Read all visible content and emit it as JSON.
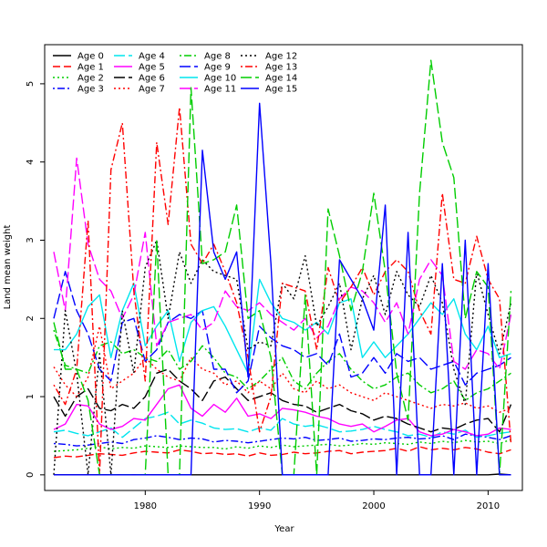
{
  "chart_data": {
    "type": "line",
    "title": "",
    "xlabel": "Year",
    "ylabel": "Land mean weight",
    "xlim": [
      1971.2,
      2013.0
    ],
    "ylim": [
      -0.2,
      5.5
    ],
    "xticks": [
      1980,
      1990,
      2000,
      2010
    ],
    "yticks": [
      0,
      1,
      2,
      3,
      4,
      5
    ],
    "legend_position": "top-left",
    "x": [
      1972,
      1973,
      1974,
      1975,
      1976,
      1977,
      1978,
      1979,
      1980,
      1981,
      1982,
      1983,
      1984,
      1985,
      1986,
      1987,
      1988,
      1989,
      1990,
      1991,
      1992,
      1993,
      1994,
      1995,
      1996,
      1997,
      1998,
      1999,
      2000,
      2001,
      2002,
      2003,
      2004,
      2005,
      2006,
      2007,
      2008,
      2009,
      2010,
      2011,
      2012
    ],
    "series": [
      {
        "name": "Age 0",
        "color": "#000000",
        "dash": "solid",
        "values": [
          0,
          0,
          0,
          0,
          0,
          0,
          0,
          0,
          0,
          0,
          0,
          0,
          0,
          0,
          0,
          0,
          0,
          0,
          0,
          0,
          0,
          0,
          0,
          0,
          0,
          0,
          0,
          0,
          0,
          0,
          0,
          0,
          0,
          0,
          0,
          0,
          0,
          0,
          0,
          0.01,
          0
        ]
      },
      {
        "name": "Age 1",
        "color": "#ff0000",
        "dash": "dashed",
        "values": [
          0.22,
          0.24,
          0.23,
          0.25,
          0.27,
          0.26,
          0.25,
          0.28,
          0.3,
          0.29,
          0.28,
          0.32,
          0.3,
          0.27,
          0.28,
          0.26,
          0.27,
          0.24,
          0.28,
          0.25,
          0.26,
          0.29,
          0.27,
          0.28,
          0.3,
          0.31,
          0.27,
          0.29,
          0.3,
          0.31,
          0.34,
          0.3,
          0.36,
          0.32,
          0.34,
          0.32,
          0.35,
          0.33,
          0.29,
          0.27,
          0.32
        ]
      },
      {
        "name": "Age 2",
        "color": "#00cd00",
        "dash": "dotted",
        "values": [
          0.3,
          0.31,
          0.32,
          0.34,
          0.36,
          0.33,
          0.35,
          0.34,
          0.37,
          0.36,
          0.35,
          0.37,
          0.36,
          0.35,
          0.35,
          0.33,
          0.36,
          0.34,
          0.37,
          0.35,
          0.38,
          0.36,
          0.37,
          0.38,
          0.39,
          0.37,
          0.38,
          0.4,
          0.39,
          0.41,
          0.4,
          0.39,
          0.42,
          0.4,
          0.43,
          0.41,
          0.44,
          0.42,
          0.43,
          0.4,
          0.45
        ]
      },
      {
        "name": "Age 3",
        "color": "#0000ff",
        "dash": "dashdot",
        "values": [
          0.4,
          0.39,
          0.37,
          0.38,
          0.4,
          0.42,
          0.4,
          0.45,
          0.47,
          0.5,
          0.48,
          0.45,
          0.47,
          0.46,
          0.42,
          0.44,
          0.43,
          0.41,
          0.43,
          0.45,
          0.47,
          0.46,
          0.48,
          0.44,
          0.45,
          0.47,
          0.43,
          0.44,
          0.46,
          0.45,
          0.47,
          0.48,
          0.46,
          0.47,
          0.5,
          0.45,
          0.52,
          0.5,
          0.48,
          0.45,
          0.5
        ]
      },
      {
        "name": "Age 4",
        "color": "#00e5ee",
        "dash": "longdash",
        "values": [
          0.55,
          0.57,
          0.53,
          0.5,
          0.55,
          0.6,
          0.48,
          0.6,
          0.72,
          0.75,
          0.8,
          0.65,
          0.7,
          0.66,
          0.6,
          0.58,
          0.59,
          0.55,
          0.6,
          0.57,
          0.72,
          0.65,
          0.62,
          0.64,
          0.6,
          0.55,
          0.56,
          0.58,
          0.62,
          0.58,
          0.55,
          0.5,
          0.52,
          0.48,
          0.55,
          0.52,
          0.57,
          0.48,
          0.5,
          0.53,
          0.55
        ]
      },
      {
        "name": "Age 5",
        "color": "#ff00ff",
        "dash": "solid",
        "values": [
          0.58,
          0.65,
          0.9,
          0.88,
          0.65,
          0.58,
          0.62,
          0.72,
          0.7,
          0.9,
          1.1,
          1.15,
          0.85,
          0.75,
          0.9,
          0.8,
          0.98,
          0.75,
          0.78,
          0.72,
          0.85,
          0.83,
          0.8,
          0.75,
          0.72,
          0.65,
          0.62,
          0.65,
          0.55,
          0.62,
          0.7,
          0.72,
          0.55,
          0.5,
          0.52,
          0.58,
          0.55,
          0.5,
          0.52,
          0.6,
          0.58
        ]
      },
      {
        "name": "Age 6",
        "color": "#000000",
        "dash": "longdash",
        "values": [
          1.0,
          0.75,
          1.0,
          1.1,
          0.85,
          0.82,
          0.9,
          0.85,
          1.0,
          1.3,
          1.35,
          1.2,
          1.1,
          0.95,
          1.2,
          1.25,
          1.1,
          0.95,
          1.0,
          1.05,
          0.95,
          0.9,
          0.88,
          0.8,
          0.85,
          0.9,
          0.82,
          0.78,
          0.7,
          0.75,
          0.72,
          0.65,
          0.6,
          0.55,
          0.6,
          0.58,
          0.65,
          0.7,
          0.72,
          0.55,
          0.9
        ]
      },
      {
        "name": "Age 7",
        "color": "#ff0000",
        "dash": "dotted",
        "values": [
          1.38,
          1.15,
          1.0,
          1.25,
          1.9,
          1.1,
          1.2,
          1.3,
          1.5,
          1.35,
          1.25,
          1.2,
          1.5,
          1.35,
          1.3,
          1.15,
          1.2,
          1.05,
          1.2,
          1.1,
          1.3,
          1.1,
          1.05,
          1.2,
          1.1,
          1.15,
          1.05,
          1.0,
          0.95,
          1.05,
          1.0,
          0.95,
          0.9,
          0.85,
          0.9,
          0.88,
          0.92,
          0.85,
          0.88,
          0.8,
          0.85
        ]
      },
      {
        "name": "Age 8",
        "color": "#00cd00",
        "dash": "dashdot",
        "values": [
          1.85,
          1.4,
          1.35,
          1.3,
          1.65,
          1.7,
          1.55,
          1.6,
          1.5,
          1.45,
          1.6,
          1.35,
          1.45,
          1.65,
          1.5,
          1.3,
          1.25,
          1.1,
          1.2,
          1.35,
          1.5,
          1.2,
          1.1,
          1.3,
          1.45,
          1.55,
          1.35,
          1.2,
          1.1,
          1.15,
          1.25,
          1.3,
          1.15,
          1.05,
          1.1,
          1.2,
          0.95,
          1.05,
          1.1,
          1.2,
          1.3
        ]
      },
      {
        "name": "Age 9",
        "color": "#0000ff",
        "dash": "longdash",
        "values": [
          2.0,
          2.6,
          2.1,
          1.8,
          1.35,
          1.2,
          1.95,
          2.0,
          1.45,
          1.6,
          1.95,
          2.05,
          2.0,
          2.1,
          1.35,
          1.35,
          1.05,
          1.2,
          1.9,
          1.75,
          1.65,
          1.6,
          1.5,
          1.55,
          1.4,
          1.8,
          1.25,
          1.3,
          1.5,
          1.3,
          1.55,
          1.45,
          1.5,
          1.35,
          1.4,
          1.45,
          1.15,
          1.3,
          1.35,
          1.4,
          1.5
        ]
      },
      {
        "name": "Age 10",
        "color": "#00e5ee",
        "dash": "solid",
        "values": [
          1.6,
          1.6,
          1.8,
          2.15,
          2.3,
          1.5,
          2.1,
          2.45,
          1.65,
          1.9,
          2.1,
          1.45,
          1.95,
          2.1,
          2.15,
          1.9,
          1.6,
          1.3,
          2.5,
          2.2,
          2.0,
          1.95,
          1.85,
          1.95,
          1.8,
          2.2,
          2.25,
          1.5,
          1.7,
          1.5,
          1.65,
          1.8,
          2.0,
          2.2,
          2.05,
          2.25,
          1.8,
          1.6,
          1.9,
          1.5,
          1.55
        ]
      },
      {
        "name": "Age 11",
        "color": "#ff00ff",
        "dash": "longdash",
        "values": [
          2.85,
          2.1,
          4.05,
          2.95,
          2.5,
          2.35,
          2.0,
          2.3,
          3.1,
          1.65,
          1.95,
          2.0,
          2.05,
          1.85,
          1.95,
          2.35,
          2.15,
          2.1,
          2.2,
          2.05,
          1.95,
          1.85,
          2.0,
          1.75,
          1.9,
          2.25,
          2.4,
          2.35,
          2.2,
          1.95,
          2.2,
          1.8,
          2.5,
          2.75,
          2.55,
          1.45,
          1.35,
          1.6,
          1.55,
          1.35,
          2.05
        ]
      },
      {
        "name": "Age 12",
        "color": "#000000",
        "dash": "dotted",
        "values": [
          0.0,
          2.1,
          1.3,
          0.0,
          1.55,
          0.0,
          2.1,
          1.3,
          2.65,
          3.0,
          2.0,
          2.85,
          2.45,
          2.75,
          2.6,
          2.55,
          2.5,
          1.6,
          1.7,
          1.65,
          2.45,
          2.25,
          2.8,
          1.9,
          2.15,
          2.45,
          1.6,
          2.25,
          2.55,
          2.05,
          2.6,
          2.3,
          2.15,
          2.55,
          2.2,
          1.35,
          0.9,
          2.6,
          2.05,
          1.55,
          2.2
        ]
      },
      {
        "name": "Age 13",
        "color": "#ff0000",
        "dash": "dashdot",
        "values": [
          1.15,
          0.9,
          1.35,
          3.25,
          0.0,
          3.9,
          4.5,
          2.35,
          1.2,
          4.25,
          3.2,
          4.7,
          2.95,
          2.7,
          2.95,
          2.6,
          2.2,
          1.5,
          0.55,
          1.0,
          2.45,
          2.4,
          2.35,
          1.6,
          2.65,
          2.2,
          2.4,
          2.65,
          2.3,
          2.6,
          2.75,
          2.6,
          2.1,
          1.8,
          3.6,
          2.5,
          2.45,
          3.05,
          2.5,
          2.25,
          0.4
        ]
      },
      {
        "name": "Age 14",
        "color": "#00cd00",
        "dash": "longdash",
        "values": [
          1.95,
          1.35,
          1.35,
          0.95,
          0.0,
          0.0,
          0.0,
          0.0,
          0.0,
          3.0,
          0.0,
          0.0,
          4.95,
          2.7,
          2.75,
          2.85,
          3.45,
          2.0,
          2.1,
          1.5,
          0.0,
          0.0,
          2.3,
          0.0,
          3.4,
          2.8,
          2.1,
          2.6,
          3.6,
          2.6,
          1.3,
          0.7,
          3.6,
          5.3,
          4.25,
          3.8,
          2.0,
          2.6,
          2.4,
          0.0,
          2.35
        ]
      },
      {
        "name": "Age 15",
        "color": "#0000ff",
        "dash": "solid",
        "values": [
          0,
          0,
          0,
          0,
          0,
          0,
          0,
          0,
          0,
          0,
          0,
          0,
          0,
          4.15,
          2.85,
          2.5,
          2.85,
          1.25,
          4.75,
          2.7,
          0,
          0,
          0,
          0,
          0,
          2.75,
          2.5,
          2.25,
          1.85,
          3.45,
          0,
          3.1,
          0,
          0,
          2.7,
          0,
          3.0,
          0,
          2.7,
          0,
          0
        ]
      }
    ]
  }
}
